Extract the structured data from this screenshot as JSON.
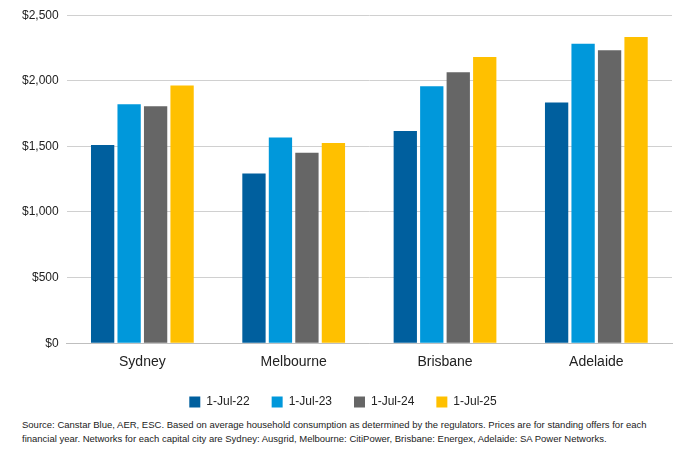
{
  "chart_data": {
    "type": "bar",
    "categories": [
      "Sydney",
      "Melbourne",
      "Brisbane",
      "Adelaide"
    ],
    "series": [
      {
        "name": "1-Jul-22",
        "color": "#005F9E",
        "values": [
          1510,
          1293,
          1618,
          1835
        ]
      },
      {
        "name": "1-Jul-23",
        "color": "#0098DB",
        "values": [
          1821,
          1568,
          1958,
          2283
        ]
      },
      {
        "name": "1-Jul-24",
        "color": "#666666",
        "values": [
          1806,
          1452,
          2066,
          2233
        ]
      },
      {
        "name": "1-Jul-25",
        "color": "#FFC000",
        "values": [
          1965,
          1525,
          2182,
          2334
        ]
      }
    ],
    "ylim": [
      0,
      2500
    ],
    "yticks": [
      {
        "value": 0,
        "label": "$0"
      },
      {
        "value": 500,
        "label": "$500"
      },
      {
        "value": 1000,
        "label": "$1,000"
      },
      {
        "value": 1500,
        "label": "$1,500"
      },
      {
        "value": 2000,
        "label": "$2,000"
      },
      {
        "value": 2500,
        "label": "$2,500"
      }
    ],
    "grid": true,
    "legend": "bottom",
    "annotations": [
      "Source: Canstar Blue, AER, ESC. Based on average household consumption as determined by the regulators. Prices are for standing offers for each financial year. Networks for each capital city are Sydney: Ausgrid, Melbourne: CitiPower, Brisbane: Energex, Adelaide: SA Power Networks."
    ]
  }
}
